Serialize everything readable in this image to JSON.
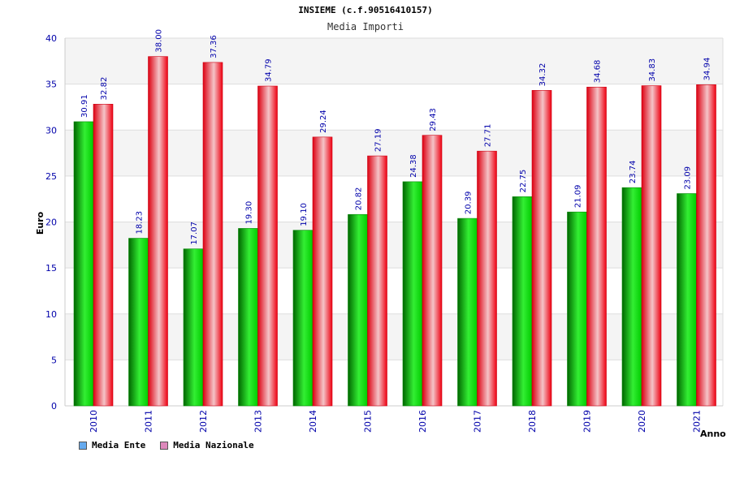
{
  "chart_data": {
    "type": "bar",
    "title": "INSIEME (c.f.90516410157)",
    "subtitle": "Media Importi",
    "xlabel": "Anno",
    "ylabel": "Euro",
    "ylim": [
      0,
      40
    ],
    "yticks": [
      0,
      5,
      10,
      15,
      20,
      25,
      30,
      35,
      40
    ],
    "categories": [
      "2010",
      "2011",
      "2012",
      "2013",
      "2014",
      "2015",
      "2016",
      "2017",
      "2018",
      "2019",
      "2020",
      "2021"
    ],
    "series": [
      {
        "name": "Media Ente",
        "values": [
          30.91,
          18.23,
          17.07,
          19.3,
          19.1,
          20.82,
          24.38,
          20.39,
          22.75,
          21.09,
          23.74,
          23.09
        ],
        "labels": [
          "30.91",
          "18.23",
          "17.07",
          "19.30",
          "19.10",
          "20.82",
          "24.38",
          "20.39",
          "22.75",
          "21.09",
          "23.74",
          "23.09"
        ],
        "color": "#00b000",
        "legend_color": "#66aaee"
      },
      {
        "name": "Media Nazionale",
        "values": [
          32.82,
          38.0,
          37.36,
          34.79,
          29.24,
          27.19,
          29.43,
          27.71,
          34.32,
          34.68,
          34.83,
          34.94
        ],
        "labels": [
          "32.82",
          "38.00",
          "37.36",
          "34.79",
          "29.24",
          "27.19",
          "29.43",
          "27.71",
          "34.32",
          "34.68",
          "34.83",
          "34.94"
        ],
        "color": "#ee1122",
        "legend_color": "#dd88bb"
      }
    ],
    "grid": true,
    "legend_position": "bottom-left"
  }
}
